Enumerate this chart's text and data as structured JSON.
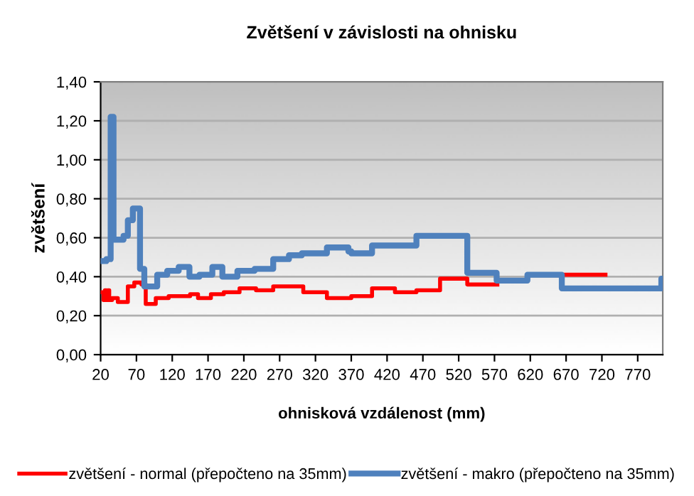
{
  "chart_data": {
    "type": "step",
    "title": "Zvětšení v závislosti na ohnisku",
    "xlabel": "ohnisková vzdálenost (mm)",
    "ylabel": "zvětšení",
    "xlim": [
      20,
      805
    ],
    "xticks": [
      20,
      70,
      120,
      170,
      220,
      270,
      320,
      370,
      420,
      470,
      520,
      570,
      620,
      670,
      720,
      770
    ],
    "ylim": [
      0,
      1.4
    ],
    "yticks": [
      {
        "value": 0,
        "label": "0,00"
      },
      {
        "value": 0.2,
        "label": "0,20"
      },
      {
        "value": 0.4,
        "label": "0,40"
      },
      {
        "value": 0.6,
        "label": "0,60"
      },
      {
        "value": 0.8,
        "label": "0,80"
      },
      {
        "value": 1.0,
        "label": "1,00"
      },
      {
        "value": 1.2,
        "label": "1,20"
      },
      {
        "value": 1.4,
        "label": "1,40"
      }
    ],
    "grid": "y",
    "legend": "bottom",
    "series": [
      {
        "name": "zvětšení - normal (přepočteno na 35mm)",
        "color": "#ff0000",
        "x": [
          20,
          24,
          26,
          28,
          30,
          32,
          36,
          44,
          58,
          67,
          77,
          83,
          97,
          115,
          145,
          156,
          174,
          192,
          214,
          237,
          261,
          303,
          336,
          370,
          399,
          431,
          461,
          494,
          532,
          573,
          574,
          664,
          725
        ],
        "values": [
          0.32,
          0.28,
          0.33,
          0.28,
          0.33,
          0.28,
          0.29,
          0.27,
          0.35,
          0.37,
          0.36,
          0.26,
          0.29,
          0.3,
          0.31,
          0.29,
          0.31,
          0.32,
          0.34,
          0.33,
          0.35,
          0.32,
          0.29,
          0.3,
          0.34,
          0.32,
          0.33,
          0.39,
          0.36,
          0.36,
          null,
          0.41,
          0.41
        ]
      },
      {
        "name": "zvětšení - makro (přepočteno na 35mm)",
        "color": "#4f81bd",
        "x": [
          20,
          28,
          34,
          38,
          52,
          58,
          65,
          75,
          81,
          99,
          113,
          129,
          144,
          158,
          176,
          190,
          211,
          235,
          261,
          283,
          301,
          336,
          366,
          370,
          399,
          461,
          532,
          573,
          616,
          664,
          803,
          805
        ],
        "values": [
          0.48,
          0.49,
          1.22,
          0.59,
          0.61,
          0.69,
          0.75,
          0.44,
          0.35,
          0.41,
          0.43,
          0.45,
          0.4,
          0.41,
          0.45,
          0.4,
          0.43,
          0.44,
          0.49,
          0.51,
          0.52,
          0.55,
          0.53,
          0.52,
          0.56,
          0.61,
          0.42,
          0.38,
          0.41,
          0.34,
          0.39,
          0.39
        ]
      }
    ]
  }
}
